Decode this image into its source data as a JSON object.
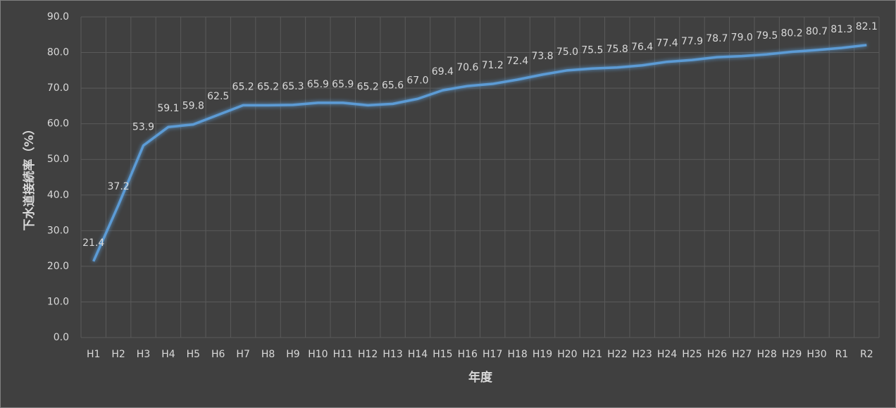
{
  "chart_data": {
    "type": "line",
    "y_label": "下水道接続率（%）",
    "x_label": "年度",
    "categories": [
      "H1",
      "H2",
      "H3",
      "H4",
      "H5",
      "H6",
      "H7",
      "H8",
      "H9",
      "H10",
      "H11",
      "H12",
      "H13",
      "H14",
      "H15",
      "H16",
      "H17",
      "H18",
      "H19",
      "H20",
      "H21",
      "H22",
      "H23",
      "H24",
      "H25",
      "H26",
      "H27",
      "H28",
      "H29",
      "H30",
      "R1",
      "R2"
    ],
    "values": [
      21.4,
      37.2,
      53.9,
      59.1,
      59.8,
      62.5,
      65.2,
      65.2,
      65.3,
      65.9,
      65.9,
      65.2,
      65.6,
      67.0,
      69.4,
      70.6,
      71.2,
      72.4,
      73.8,
      75.0,
      75.5,
      75.8,
      76.4,
      77.4,
      77.9,
      78.7,
      79.0,
      79.5,
      80.2,
      80.7,
      81.3,
      82.1
    ],
    "value_labels": [
      "21.4",
      "37.2",
      "53.9",
      "59.1",
      "59.8",
      "62.5",
      "65.2",
      "65.2",
      "65.3",
      "65.9",
      "65.9",
      "65.2",
      "65.6",
      "67.0",
      "69.4",
      "70.6",
      "71.2",
      "72.4",
      "73.8",
      "75.0",
      "75.5",
      "75.8",
      "76.4",
      "77.4",
      "77.9",
      "78.7",
      "79.0",
      "79.5",
      "80.2",
      "80.7",
      "81.3",
      "82.1"
    ],
    "color": "#5b9bd5",
    "ylim": [
      0,
      90
    ],
    "yticks": [
      {
        "value": 0,
        "label": "0.0"
      },
      {
        "value": 10,
        "label": "10.0"
      },
      {
        "value": 20,
        "label": "20.0"
      },
      {
        "value": 30,
        "label": "30.0"
      },
      {
        "value": 40,
        "label": "40.0"
      },
      {
        "value": 50,
        "label": "50.0"
      },
      {
        "value": 60,
        "label": "60.0"
      },
      {
        "value": 70,
        "label": "70.0"
      },
      {
        "value": 80,
        "label": "80.0"
      },
      {
        "value": 90,
        "label": "90.0"
      }
    ],
    "grid": true
  }
}
